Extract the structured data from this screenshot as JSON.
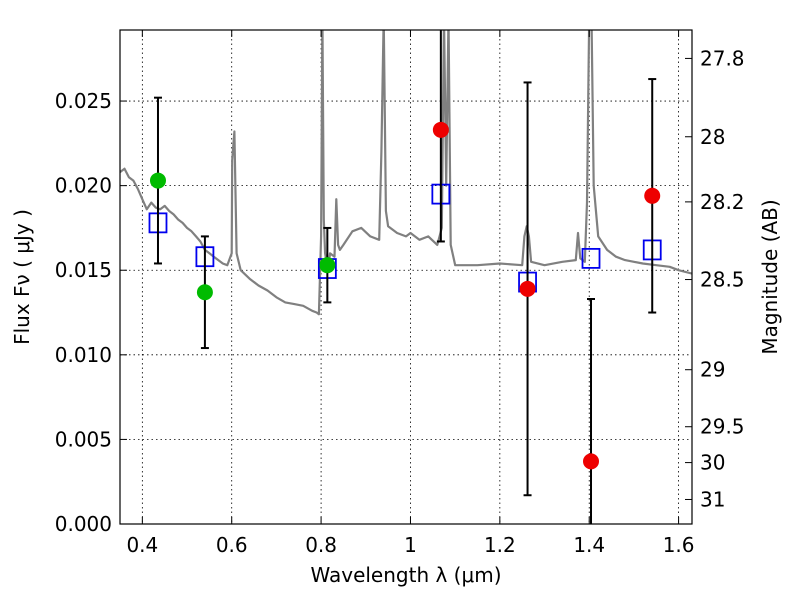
{
  "chart_data": {
    "type": "scatter",
    "xlabel": "Wavelength  λ (μm)",
    "ylabel": "Flux  Fν  ( μJy )",
    "y2label": "Magnitude (AB)",
    "xlim": [
      0.35,
      1.63
    ],
    "ylim": [
      0.0,
      0.0292
    ],
    "grid": true,
    "x_ticks": [
      0.4,
      0.6,
      0.8,
      1.0,
      1.2,
      1.4,
      1.6
    ],
    "x_tick_labels": [
      "0.4",
      "0.6",
      "0.8",
      "1",
      "1.2",
      "1.4",
      "1.6"
    ],
    "y_ticks": [
      0.0,
      0.005,
      0.01,
      0.015,
      0.02,
      0.025
    ],
    "y_tick_labels": [
      "0.000",
      "0.005",
      "0.010",
      "0.015",
      "0.020",
      "0.025"
    ],
    "y2_ticks": [
      {
        "label": "27.8",
        "flux": 0.02752
      },
      {
        "label": "28",
        "flux": 0.02289
      },
      {
        "label": "28.2",
        "flux": 0.01904
      },
      {
        "label": "28.5",
        "flux": 0.01445
      },
      {
        "label": "29",
        "flux": 0.00912
      },
      {
        "label": "29.5",
        "flux": 0.00575
      },
      {
        "label": "30",
        "flux": 0.00363
      },
      {
        "label": "31",
        "flux": 0.00145
      }
    ],
    "colors": {
      "spectrum": "#808080",
      "model": "#0000ee",
      "detection": "#00bb00",
      "photometry": "#ee0000",
      "errorbar": "#000000"
    },
    "series": [
      {
        "kind": "spectrum",
        "x": [
          0.35,
          0.36,
          0.37,
          0.38,
          0.39,
          0.4,
          0.41,
          0.42,
          0.43,
          0.44,
          0.45,
          0.46,
          0.47,
          0.48,
          0.49,
          0.5,
          0.51,
          0.52,
          0.53,
          0.54,
          0.55,
          0.56,
          0.57,
          0.58,
          0.59,
          0.6,
          0.601,
          0.606,
          0.611,
          0.62,
          0.64,
          0.66,
          0.68,
          0.7,
          0.72,
          0.74,
          0.76,
          0.78,
          0.79,
          0.795,
          0.8,
          0.803,
          0.806,
          0.809,
          0.812,
          0.816,
          0.82,
          0.83,
          0.834,
          0.838,
          0.842,
          0.85,
          0.87,
          0.89,
          0.91,
          0.93,
          0.935,
          0.94,
          0.945,
          0.95,
          0.97,
          0.99,
          1.0,
          1.02,
          1.04,
          1.06,
          1.07,
          1.075,
          1.08,
          1.085,
          1.09,
          1.1,
          1.15,
          1.2,
          1.25,
          1.255,
          1.26,
          1.265,
          1.27,
          1.3,
          1.34,
          1.37,
          1.375,
          1.38,
          1.39,
          1.395,
          1.4,
          1.405,
          1.41,
          1.42,
          1.44,
          1.46,
          1.48,
          1.5,
          1.52,
          1.55,
          1.58,
          1.6,
          1.63
        ],
        "y": [
          0.0208,
          0.021,
          0.0205,
          0.0203,
          0.0198,
          0.0192,
          0.0186,
          0.019,
          0.0187,
          0.0186,
          0.0188,
          0.0185,
          0.0183,
          0.018,
          0.0178,
          0.0175,
          0.0173,
          0.017,
          0.0167,
          0.0162,
          0.016,
          0.0158,
          0.0156,
          0.0154,
          0.0153,
          0.016,
          0.0215,
          0.0232,
          0.016,
          0.015,
          0.0145,
          0.0141,
          0.0138,
          0.0134,
          0.0131,
          0.013,
          0.0129,
          0.0126,
          0.0125,
          0.0124,
          0.017,
          0.03,
          0.018,
          0.016,
          0.0155,
          0.015,
          0.016,
          0.0158,
          0.0192,
          0.0165,
          0.0162,
          0.0165,
          0.0173,
          0.0175,
          0.017,
          0.0168,
          0.022,
          0.03,
          0.0185,
          0.0176,
          0.0172,
          0.017,
          0.0172,
          0.0168,
          0.017,
          0.0165,
          0.0175,
          0.03,
          0.02,
          0.03,
          0.0165,
          0.0153,
          0.0153,
          0.0154,
          0.0153,
          0.017,
          0.0176,
          0.017,
          0.0155,
          0.0153,
          0.0155,
          0.0156,
          0.0172,
          0.0157,
          0.0155,
          0.019,
          0.03,
          0.03,
          0.02,
          0.017,
          0.0162,
          0.0158,
          0.0156,
          0.0155,
          0.0154,
          0.0153,
          0.0152,
          0.015,
          0.0148
        ]
      },
      {
        "kind": "model",
        "x": [
          0.435,
          0.54,
          0.814,
          1.068,
          1.262,
          1.404,
          1.541
        ],
        "y": [
          0.0178,
          0.0158,
          0.0151,
          0.0195,
          0.0143,
          0.0157,
          0.0162
        ]
      },
      {
        "kind": "detection",
        "x": [
          0.435,
          0.54,
          0.814
        ],
        "y": [
          0.0203,
          0.0137,
          0.0153
        ],
        "err": [
          0.0049,
          0.0033,
          0.0022
        ]
      },
      {
        "kind": "photometry",
        "x": [
          1.068,
          1.262,
          1.404,
          1.541
        ],
        "y": [
          0.0233,
          0.0139,
          0.0037,
          0.0194
        ],
        "err": [
          0.0066,
          0.0122,
          0.0096,
          0.0069
        ]
      }
    ]
  }
}
